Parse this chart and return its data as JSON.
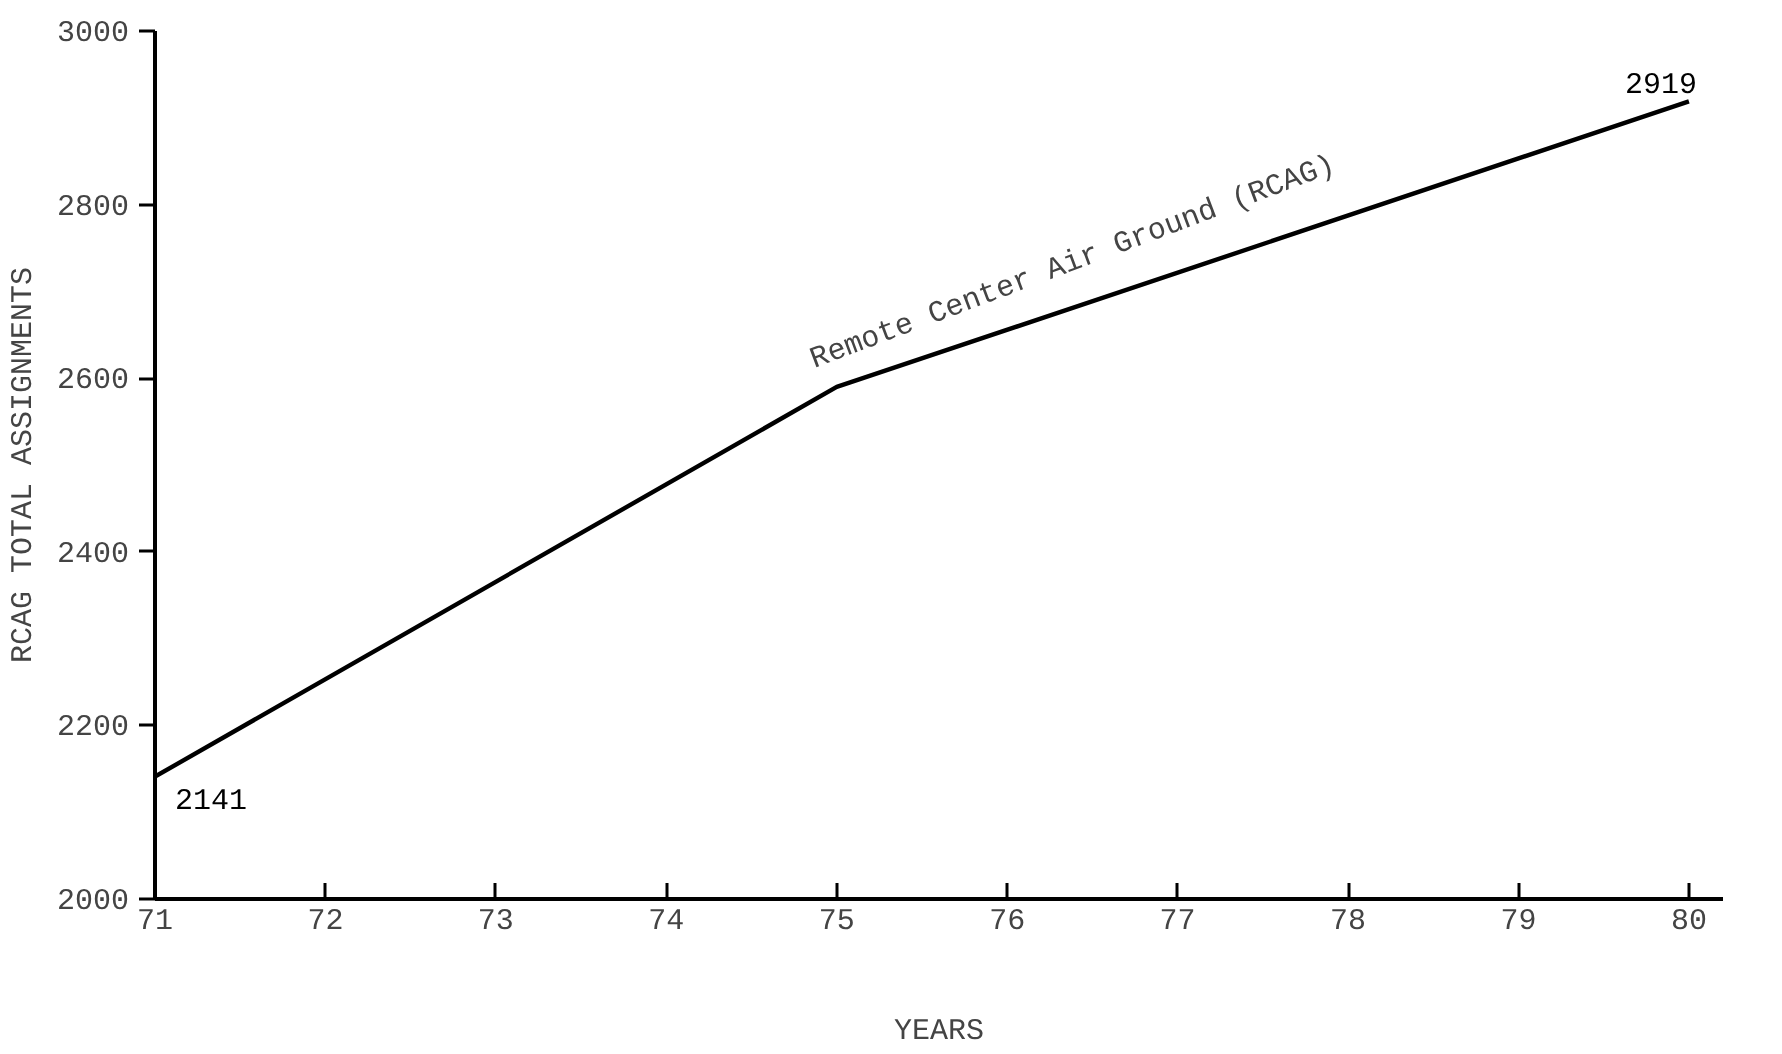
{
  "chart_data": {
    "type": "line",
    "xlabel": "YEARS",
    "ylabel": "RCAG TOTAL ASSIGNMENTS",
    "x": [
      71,
      75,
      80
    ],
    "series": [
      {
        "color": "#000000",
        "values": [
          2141,
          2590,
          2919
        ],
        "value_labels": [
          "2141",
          null,
          "2919"
        ]
      }
    ],
    "annotations": [
      "Remote Center Air Ground (RCAG)"
    ],
    "xlim": [
      71,
      80.2
    ],
    "ylim": [
      2000,
      3000
    ],
    "xticks": [
      71,
      72,
      73,
      74,
      75,
      76,
      77,
      78,
      79,
      80
    ],
    "yticks": [
      2000,
      2200,
      2400,
      2600,
      2800,
      3000
    ],
    "grid": false,
    "marker": "none",
    "line_style": "solid"
  }
}
